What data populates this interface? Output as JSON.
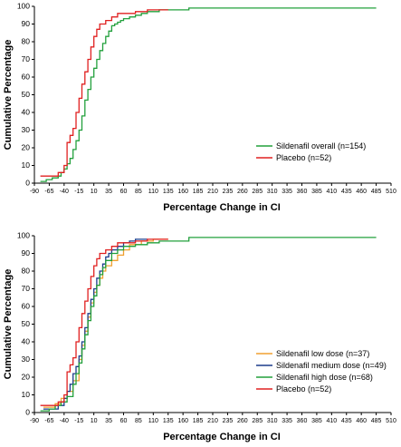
{
  "chart_data": [
    {
      "type": "line",
      "step": true,
      "xlabel": "Percentage Change in CI",
      "ylabel": "Cumulative Percentage",
      "xlim": [
        -90,
        510
      ],
      "ylim": [
        0,
        100
      ],
      "xticks": [
        -90,
        -65,
        -40,
        -15,
        10,
        35,
        60,
        85,
        110,
        135,
        160,
        185,
        210,
        235,
        260,
        285,
        310,
        335,
        360,
        385,
        410,
        435,
        460,
        485,
        510
      ],
      "yticks": [
        0,
        10,
        20,
        30,
        40,
        50,
        60,
        70,
        80,
        90,
        100
      ],
      "legend_position": "lower-right",
      "series": [
        {
          "name": "Sildenafil overall (n=154)",
          "color": "#22a03c",
          "x": [
            -80,
            -70,
            -60,
            -50,
            -45,
            -40,
            -35,
            -30,
            -25,
            -20,
            -15,
            -10,
            -5,
            0,
            5,
            10,
            15,
            20,
            25,
            30,
            35,
            40,
            45,
            50,
            55,
            60,
            70,
            80,
            90,
            100,
            120,
            140,
            170,
            485
          ],
          "y": [
            1,
            2,
            3,
            4,
            6,
            8,
            11,
            14,
            19,
            24,
            30,
            38,
            47,
            53,
            60,
            65,
            70,
            75,
            79,
            83,
            86,
            89,
            90,
            91,
            92,
            93,
            94,
            95,
            96,
            97,
            98,
            98,
            99,
            99
          ]
        },
        {
          "name": "Placebo (n=52)",
          "color": "#e02020",
          "x": [
            -80,
            -60,
            -50,
            -40,
            -35,
            -30,
            -25,
            -20,
            -15,
            -10,
            -5,
            0,
            5,
            10,
            15,
            20,
            25,
            30,
            40,
            50,
            60,
            80,
            100,
            135
          ],
          "y": [
            4,
            4,
            6,
            10,
            23,
            27,
            31,
            40,
            48,
            56,
            63,
            70,
            77,
            83,
            87,
            90,
            90,
            92,
            94,
            96,
            96,
            97,
            98,
            98
          ]
        }
      ]
    },
    {
      "type": "line",
      "step": true,
      "xlabel": "Percentage Change in CI",
      "ylabel": "Cumulative Percentage",
      "xlim": [
        -90,
        510
      ],
      "ylim": [
        0,
        100
      ],
      "xticks": [
        -90,
        -65,
        -40,
        -15,
        10,
        35,
        60,
        85,
        110,
        135,
        160,
        185,
        210,
        235,
        260,
        285,
        310,
        335,
        360,
        385,
        410,
        435,
        460,
        485,
        510
      ],
      "yticks": [
        0,
        10,
        20,
        30,
        40,
        50,
        60,
        70,
        80,
        90,
        100
      ],
      "legend_position": "lower-right",
      "series": [
        {
          "name": "Sildenafil low dose (n=37)",
          "color": "#f0a030",
          "x": [
            -75,
            -55,
            -45,
            -35,
            -25,
            -15,
            -10,
            -5,
            0,
            5,
            10,
            15,
            20,
            25,
            30,
            40,
            50,
            60,
            70,
            90,
            110,
            135
          ],
          "y": [
            3,
            5,
            8,
            12,
            18,
            30,
            38,
            46,
            54,
            62,
            68,
            72,
            76,
            80,
            83,
            86,
            89,
            92,
            95,
            97,
            98,
            98
          ]
        },
        {
          "name": "Sildenafil medium dose (n=49)",
          "color": "#1c3c8c",
          "x": [
            -75,
            -50,
            -40,
            -35,
            -30,
            -25,
            -20,
            -15,
            -10,
            -5,
            0,
            5,
            10,
            15,
            20,
            25,
            30,
            35,
            40,
            50,
            60,
            70,
            80,
            100
          ],
          "y": [
            2,
            4,
            8,
            12,
            16,
            22,
            26,
            32,
            40,
            48,
            56,
            64,
            70,
            76,
            80,
            84,
            88,
            90,
            92,
            94,
            96,
            97,
            98,
            98
          ]
        },
        {
          "name": "Sildenafil high dose (n=68)",
          "color": "#22a03c",
          "x": [
            -80,
            -65,
            -55,
            -45,
            -35,
            -25,
            -20,
            -15,
            -10,
            -5,
            0,
            5,
            10,
            15,
            20,
            25,
            30,
            40,
            50,
            60,
            80,
            100,
            120,
            170,
            485
          ],
          "y": [
            1,
            2,
            4,
            6,
            9,
            16,
            22,
            28,
            36,
            44,
            52,
            60,
            66,
            72,
            78,
            82,
            86,
            90,
            92,
            94,
            95,
            96,
            97,
            99,
            99
          ]
        },
        {
          "name": "Placebo (n=52)",
          "color": "#e02020",
          "x": [
            -80,
            -60,
            -50,
            -40,
            -35,
            -30,
            -25,
            -20,
            -15,
            -10,
            -5,
            0,
            5,
            10,
            15,
            20,
            25,
            30,
            40,
            50,
            60,
            80,
            100,
            135
          ],
          "y": [
            4,
            4,
            6,
            10,
            23,
            27,
            31,
            40,
            48,
            56,
            63,
            70,
            77,
            83,
            87,
            90,
            90,
            92,
            94,
            96,
            96,
            97,
            98,
            98
          ]
        }
      ]
    }
  ]
}
